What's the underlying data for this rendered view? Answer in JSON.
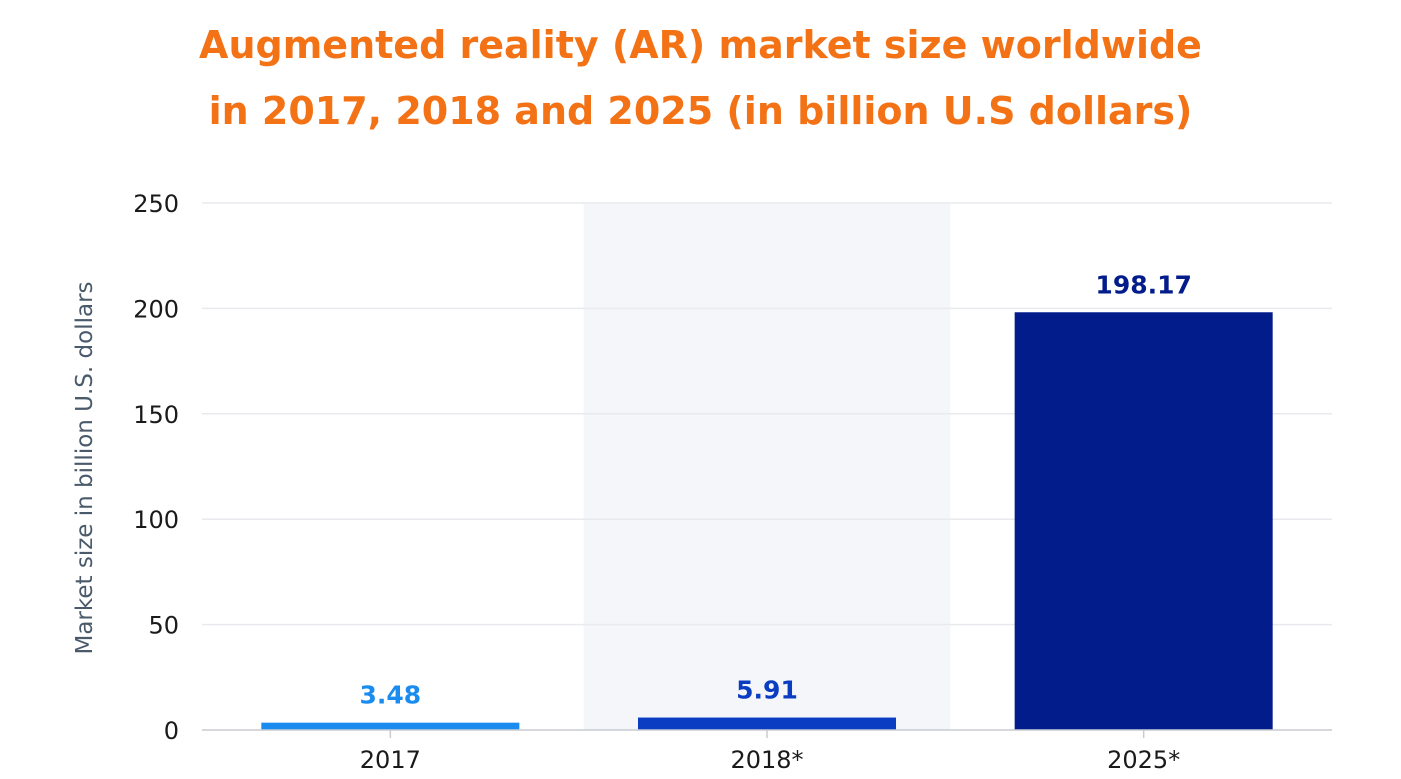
{
  "chart_data": {
    "type": "bar",
    "title_lines": [
      "Augmented reality (AR) market size worldwide",
      "in 2017, 2018 and 2025 (in billion U.S dollars)"
    ],
    "xlabel": "",
    "ylabel": "Market size in billion U.S. dollars",
    "ylim": [
      0,
      250
    ],
    "yticks": [
      0,
      50,
      100,
      150,
      200,
      250
    ],
    "ytick_labels": [
      "0",
      "50",
      "100",
      "150",
      "200",
      "250"
    ],
    "categories": [
      "2017",
      "2018*",
      "2025*"
    ],
    "values": [
      3.48,
      5.91,
      198.17
    ],
    "value_labels": [
      "3.48",
      "5.91",
      "198.17"
    ],
    "bar_colors": [
      "#1a8cf0",
      "#0a3dc2",
      "#031c8c"
    ],
    "label_colors": [
      "#1a8cf0",
      "#0a3dc2",
      "#031c8c"
    ],
    "highlight_category": "2018*",
    "highlight_color": "#f4f6f9",
    "gridlines": true,
    "grid_color": "#e8eaee",
    "legend": "none"
  }
}
